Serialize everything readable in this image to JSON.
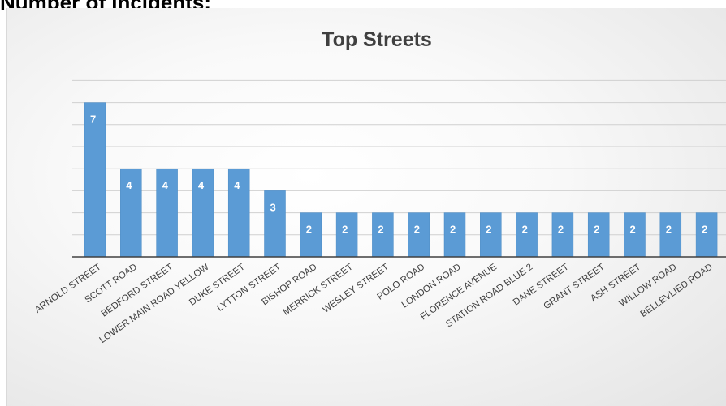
{
  "page": {
    "heading": "Number of Incidents:"
  },
  "chart_data": {
    "type": "bar",
    "title": "Top Streets",
    "xlabel": "",
    "ylabel": "",
    "categories": [
      "ARNOLD STREET",
      "SCOTT ROAD",
      "BEDFORD STREET",
      "LOWER MAIN ROAD YELLOW",
      "DUKE STREET",
      "LYTTON STREET",
      "BISHOP ROAD",
      "MERRICK STREET",
      "WESLEY STREET",
      "POLO ROAD",
      "LONDON ROAD",
      "FLORENCE AVENUE",
      "STATION ROAD BLUE 2",
      "DANE STREET",
      "GRANT STREET",
      "ASH STREET",
      "WILLOW ROAD",
      "BELLEVLIED ROAD"
    ],
    "values": [
      7,
      4,
      4,
      4,
      4,
      3,
      2,
      2,
      2,
      2,
      2,
      2,
      2,
      2,
      2,
      2,
      2,
      2
    ],
    "ylim": [
      0,
      8
    ],
    "grid": true,
    "data_labels": true,
    "legend": "none",
    "bar_color": "#5b9bd5",
    "bar_edge_color": "#4a8ac4",
    "data_label_color": "#ffffff",
    "gridline_color": "#d0d0d0",
    "axis_color": "#404040"
  }
}
